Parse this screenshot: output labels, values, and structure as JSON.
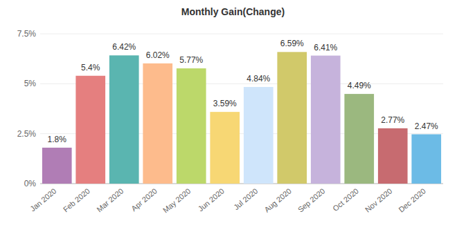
{
  "chart_data": {
    "type": "bar",
    "title": "Monthly Gain(Change)",
    "categories": [
      "Jan 2020",
      "Feb 2020",
      "Mar 2020",
      "Apr 2020",
      "May 2020",
      "Jun 2020",
      "Jul 2020",
      "Aug 2020",
      "Sep 2020",
      "Oct 2020",
      "Nov 2020",
      "Dec 2020"
    ],
    "values": [
      1.8,
      5.4,
      6.42,
      6.02,
      5.77,
      3.59,
      4.84,
      6.59,
      6.41,
      4.49,
      2.77,
      2.47
    ],
    "value_labels": [
      "1.8%",
      "5.4%",
      "6.42%",
      "6.02%",
      "5.77%",
      "3.59%",
      "4.84%",
      "6.59%",
      "6.41%",
      "4.49%",
      "2.77%",
      "2.47%"
    ],
    "colors": [
      "#b07db5",
      "#e57f7f",
      "#5ab5b0",
      "#fdbb8c",
      "#bcd86a",
      "#f7d774",
      "#cfe5fb",
      "#d1c96a",
      "#c6b3dc",
      "#9bb87f",
      "#c76b70",
      "#6cbbe6"
    ],
    "ylim": [
      0,
      7.5
    ],
    "yticks": [
      {
        "value": 0,
        "label": "0%"
      },
      {
        "value": 2.5,
        "label": "2.5%"
      },
      {
        "value": 5,
        "label": "5%"
      },
      {
        "value": 7.5,
        "label": "7.5%"
      }
    ],
    "grid": true,
    "data_labels": true
  }
}
